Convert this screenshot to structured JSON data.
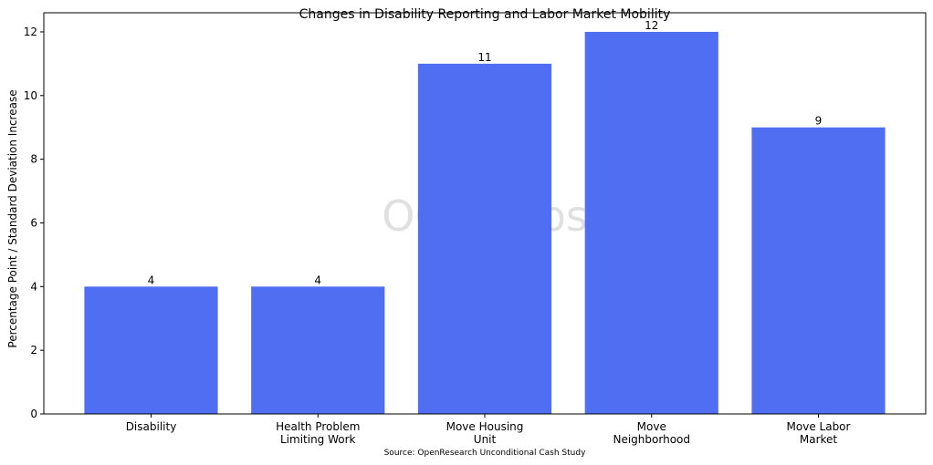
{
  "chart_data": {
    "type": "bar",
    "title": "Changes in Disability Reporting and Labor Market Mobility",
    "xlabel": "",
    "ylabel": "Percentage Point / Standard Deviation Increase",
    "categories": [
      [
        "Disability"
      ],
      [
        "Health Problem",
        "Limiting Work"
      ],
      [
        "Move Housing",
        "Unit"
      ],
      [
        "Move",
        "Neighborhood"
      ],
      [
        "Move Labor",
        "Market"
      ]
    ],
    "values": [
      4,
      4,
      11,
      12,
      9
    ],
    "data_labels": [
      "4",
      "4",
      "11",
      "12",
      "9"
    ],
    "ylim": [
      0,
      12.6
    ],
    "yticks": [
      0,
      2,
      4,
      6,
      8,
      10,
      12
    ],
    "grid": false,
    "bar_color": "#4f6ef2",
    "source_note": "Source: OpenResearch Unconditional Cash Study",
    "watermark": "OGC Labs"
  }
}
